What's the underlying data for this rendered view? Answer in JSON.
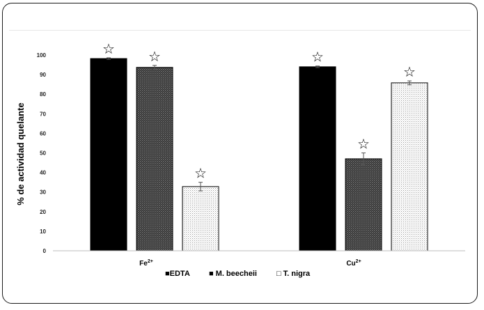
{
  "chart_data": {
    "type": "bar",
    "title": "",
    "ylabel": "% de actividad quelante",
    "ylim": [
      0,
      100
    ],
    "yticks": [
      0,
      10,
      20,
      30,
      40,
      50,
      60,
      70,
      80,
      90,
      100
    ],
    "categories": [
      {
        "base": "Fe",
        "sup": "2+"
      },
      {
        "base": "Cu",
        "sup": "2+"
      }
    ],
    "series": [
      {
        "name": "EDTA",
        "values": [
          98.2,
          94.0
        ],
        "errors": [
          0.4,
          0.4
        ],
        "pattern": "solid",
        "color": "#000000"
      },
      {
        "name": "M. beecheii",
        "values": [
          93.7,
          47.0
        ],
        "errors": [
          1.0,
          3.0
        ],
        "pattern": "checker",
        "color": "#1a1a1a"
      },
      {
        "name": "T. nigra",
        "values": [
          32.8,
          85.8
        ],
        "errors": [
          2.2,
          1.0
        ],
        "pattern": "dots",
        "color": "#ffffff"
      }
    ],
    "annotations": [
      {
        "symbol": "☆",
        "note": "star marker above every bar"
      }
    ],
    "legend": {
      "position": "bottom",
      "entries": [
        {
          "symbol": "■",
          "label": "EDTA"
        },
        {
          "symbol": "■",
          "label": "M. beecheii"
        },
        {
          "symbol": "□",
          "label": "T. nigra"
        }
      ]
    },
    "grid": false
  }
}
